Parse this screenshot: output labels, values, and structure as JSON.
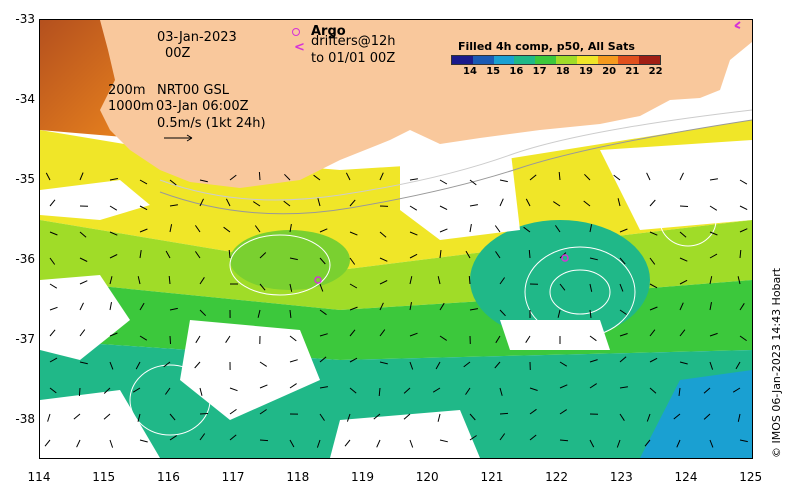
{
  "map": {
    "y_ticks": [
      "-33",
      "-34",
      "-35",
      "-36",
      "-37",
      "-38"
    ],
    "x_ticks": [
      "114",
      "115",
      "116",
      "117",
      "118",
      "119",
      "120",
      "121",
      "122",
      "123",
      "124",
      "125"
    ],
    "date_line1": "03-Jan-2023",
    "date_line2": "00Z",
    "contour_200": "200m",
    "contour_1000": "1000m",
    "nrt_label": "NRT00 GSL",
    "nrt_time": "03-Jan 06:00Z",
    "scale_label": "0.5m/s (1kt 24h)",
    "argo_label": "Argo",
    "drifters_label": "drifters@12h",
    "drifters_to": "to 01/01 00Z",
    "legend_title": "Filled 4h comp, p50, All Sats",
    "colorbar_ticks": [
      "14",
      "15",
      "16",
      "17",
      "18",
      "19",
      "20",
      "21",
      "22"
    ],
    "credit": "© IMOS 06-Jan-2023 14:43 Hobart",
    "land_color": "#f9c89c",
    "argo_color": "#d633d6",
    "colorbar_colors": [
      "#1a1a8c",
      "#1a5ab4",
      "#1aa0d2",
      "#20b888",
      "#3cc83c",
      "#a0dc28",
      "#f0e628",
      "#f59a1e",
      "#e0501e",
      "#a01e14"
    ]
  }
}
